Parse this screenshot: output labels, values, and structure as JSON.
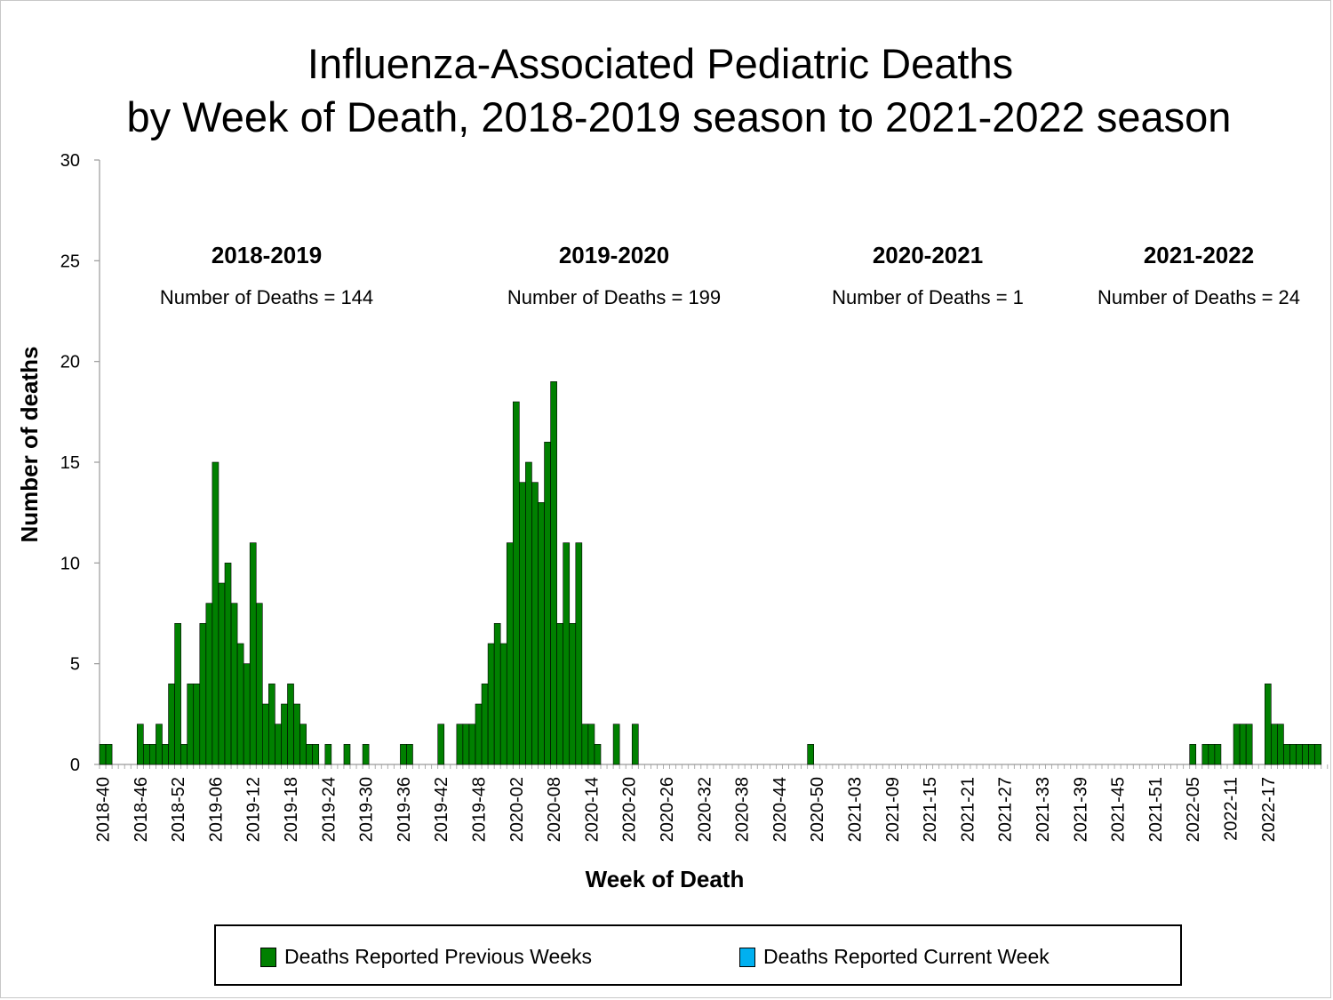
{
  "chart_data": {
    "type": "bar",
    "title": "Influenza-Associated Pediatric Deaths",
    "subtitle": "by Week of Death, 2018-2019 season to 2021-2022 season",
    "xlabel": "Week of Death",
    "ylabel": "Number of deaths",
    "ylim": [
      0,
      30
    ],
    "yticks": [
      0,
      5,
      10,
      15,
      20,
      25,
      30
    ],
    "xtick_labels": [
      "2018-40",
      "2018-46",
      "2018-52",
      "2019-06",
      "2019-12",
      "2019-18",
      "2019-24",
      "2019-30",
      "2019-36",
      "2019-42",
      "2019-48",
      "2020-02",
      "2020-08",
      "2020-14",
      "2020-20",
      "2020-26",
      "2020-32",
      "2020-38",
      "2020-44",
      "2020-50",
      "2021-03",
      "2021-09",
      "2021-15",
      "2021-21",
      "2021-27",
      "2021-33",
      "2021-39",
      "2021-45",
      "2021-51",
      "2022-05",
      "2022-11",
      "2022-17"
    ],
    "first_week": "2018-40",
    "last_week": "2022-17",
    "grid": false,
    "legend_position": "bottom",
    "series": [
      {
        "name": "Deaths Reported Previous Weeks",
        "color": "#008000",
        "values": [
          1,
          1,
          0,
          0,
          0,
          0,
          2,
          1,
          1,
          2,
          1,
          4,
          7,
          1,
          4,
          4,
          7,
          8,
          15,
          9,
          10,
          8,
          6,
          5,
          11,
          8,
          3,
          4,
          2,
          3,
          4,
          3,
          2,
          1,
          1,
          0,
          1,
          0,
          0,
          1,
          0,
          0,
          1,
          0,
          0,
          0,
          0,
          0,
          1,
          1,
          0,
          0,
          0,
          0,
          2,
          0,
          0,
          2,
          2,
          2,
          3,
          4,
          6,
          7,
          6,
          11,
          18,
          14,
          15,
          14,
          13,
          16,
          19,
          7,
          11,
          7,
          11,
          2,
          2,
          1,
          0,
          0,
          2,
          0,
          0,
          2,
          0,
          0,
          0,
          0,
          0,
          0,
          0,
          0,
          0,
          0,
          0,
          0,
          0,
          0,
          0,
          0,
          0,
          0,
          0,
          0,
          0,
          0,
          0,
          0,
          0,
          0,
          0,
          1,
          0,
          0,
          0,
          0,
          0,
          0,
          0,
          0,
          0,
          0,
          0,
          0,
          0,
          0,
          0,
          0,
          0,
          0,
          0,
          0,
          0,
          0,
          0,
          0,
          0,
          0,
          0,
          0,
          0,
          0,
          0,
          0,
          0,
          0,
          0,
          0,
          0,
          0,
          0,
          0,
          0,
          0,
          0,
          0,
          0,
          0,
          0,
          0,
          0,
          0,
          0,
          0,
          0,
          0,
          0,
          0,
          0,
          0,
          0,
          0,
          1,
          0,
          1,
          1,
          1,
          0,
          0,
          2,
          2,
          2,
          0,
          0,
          4,
          2,
          2,
          1,
          1,
          1,
          1,
          1,
          1,
          0,
          0,
          0
        ]
      },
      {
        "name": "Deaths Reported Current Week",
        "color": "#00b0f0",
        "values": []
      }
    ],
    "annotations": [
      {
        "season": "2018-2019",
        "text": "Number of Deaths = 144"
      },
      {
        "season": "2019-2020",
        "text": "Number of Deaths = 199"
      },
      {
        "season": "2020-2021",
        "text": "Number of Deaths = 1"
      },
      {
        "season": "2021-2022",
        "text": "Number of Deaths = 24"
      }
    ]
  }
}
